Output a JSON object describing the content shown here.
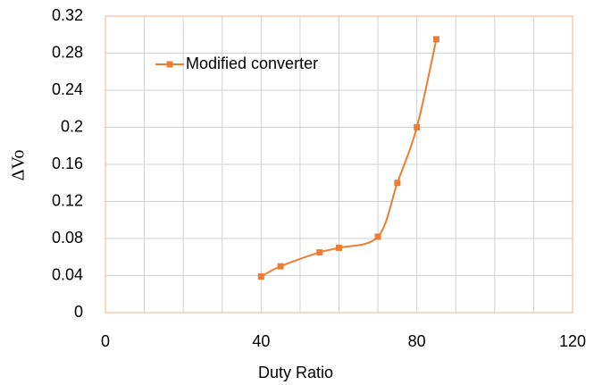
{
  "chart_data": {
    "type": "line",
    "x_label": "Duty Ratio",
    "y_label": "ΔVo",
    "x": [
      40,
      45,
      55,
      60,
      70,
      75,
      80,
      85
    ],
    "series": [
      {
        "name": "Modified converter",
        "color": "#ed7d31",
        "values": [
          0.039,
          0.05,
          0.065,
          0.07,
          0.082,
          0.14,
          0.2,
          0.295
        ]
      }
    ],
    "xlim": [
      0,
      120
    ],
    "xticks": [
      0,
      40,
      80,
      120
    ],
    "xgrid": [
      0,
      10,
      20,
      30,
      40,
      50,
      60,
      70,
      80,
      90,
      100,
      110,
      120
    ],
    "ylim": [
      0,
      0.32
    ],
    "yticks": [
      0,
      0.04,
      0.08,
      0.12,
      0.16,
      0.2,
      0.24,
      0.28,
      0.32
    ],
    "grid": true,
    "smooth": true,
    "legend": "upper left"
  }
}
